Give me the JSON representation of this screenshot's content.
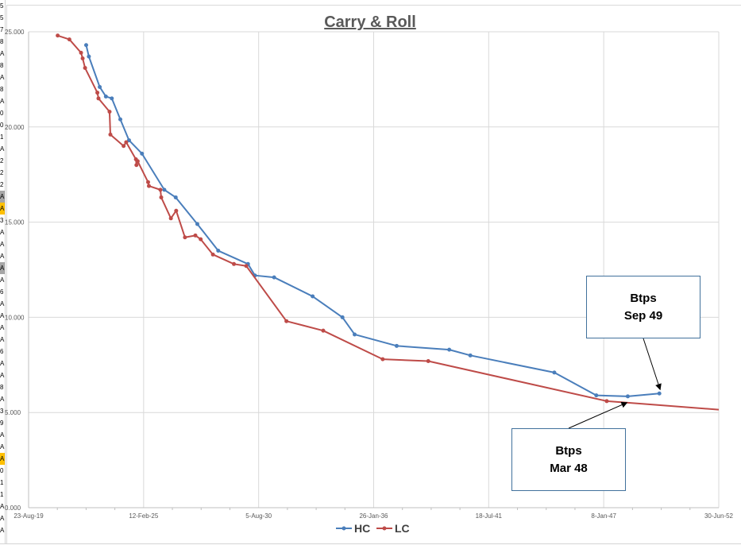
{
  "row_header_letters": [
    "5",
    "5",
    "7",
    "8",
    "A",
    "8",
    "A",
    "8",
    "A",
    "0",
    "0",
    "1",
    "A",
    "2",
    "2",
    "2",
    "A",
    "A",
    "3",
    "A",
    "A",
    "A",
    "A",
    "A",
    "6",
    "A",
    "A",
    "A",
    "A",
    "6",
    "A",
    "A",
    "8",
    "A",
    "3",
    "9",
    "A",
    "A",
    "A",
    "0",
    "1",
    "1",
    "A",
    "A",
    "A"
  ],
  "highlight_color": "#ffc000",
  "chart_data": {
    "type": "line",
    "title": "Carry & Roll",
    "xlabel": "",
    "ylabel": "",
    "x_tick_labels": [
      "23-Aug-19",
      "12-Feb-25",
      "5-Aug-30",
      "26-Jan-36",
      "18-Jul-41",
      "8-Jan-47",
      "30-Jun-52"
    ],
    "x_tick_dates": [
      "2019-08-23",
      "2025-02-12",
      "2030-08-05",
      "2036-01-26",
      "2041-07-18",
      "2047-01-08",
      "2052-06-30"
    ],
    "y_tick_labels": [
      "0.000",
      "5.000",
      "10.000",
      "15.000",
      "20.000",
      "25.000"
    ],
    "ylim": [
      0,
      25
    ],
    "xlim": [
      "2019-08-23",
      "2052-06-30"
    ],
    "grid": true,
    "legend_position": "bottom",
    "series": [
      {
        "name": "HC",
        "color": "#4a7ebb",
        "points": [
          [
            "2022-05-20",
            24.3
          ],
          [
            "2022-07-06",
            23.7
          ],
          [
            "2023-01-11",
            22.1
          ],
          [
            "2023-04-28",
            21.6
          ],
          [
            "2023-08-09",
            21.5
          ],
          [
            "2024-01-04",
            20.4
          ],
          [
            "2024-06-03",
            19.3
          ],
          [
            "2025-01-14",
            18.6
          ],
          [
            "2026-02-07",
            16.7
          ],
          [
            "2026-08-24",
            16.3
          ],
          [
            "2027-09-04",
            14.9
          ],
          [
            "2028-09-01",
            13.5
          ],
          [
            "2030-02-01",
            12.8
          ],
          [
            "2030-06-01",
            12.2
          ],
          [
            "2031-05-01",
            12.1
          ],
          [
            "2033-03-01",
            11.1
          ],
          [
            "2034-08-01",
            10.0
          ],
          [
            "2035-03-01",
            9.1
          ],
          [
            "2037-03-01",
            8.5
          ],
          [
            "2039-09-01",
            8.3
          ],
          [
            "2040-09-01",
            8.0
          ],
          [
            "2044-09-01",
            7.1
          ],
          [
            "2046-09-01",
            5.9
          ],
          [
            "2048-03-01",
            5.85
          ],
          [
            "2049-09-01",
            6.0
          ]
        ]
      },
      {
        "name": "LC",
        "color": "#be4b48",
        "points": [
          [
            "2021-01-10",
            24.8
          ],
          [
            "2021-08-01",
            24.6
          ],
          [
            "2022-02-20",
            23.9
          ],
          [
            "2022-03-20",
            23.6
          ],
          [
            "2022-05-01",
            23.1
          ],
          [
            "2022-12-01",
            21.8
          ],
          [
            "2022-12-20",
            21.5
          ],
          [
            "2023-07-01",
            20.8
          ],
          [
            "2023-07-15",
            19.6
          ],
          [
            "2024-03-01",
            19.0
          ],
          [
            "2024-04-15",
            19.2
          ],
          [
            "2024-10-01",
            18.3
          ],
          [
            "2024-10-10",
            18.0
          ],
          [
            "2024-11-01",
            18.2
          ],
          [
            "2025-05-01",
            17.1
          ],
          [
            "2025-05-15",
            16.9
          ],
          [
            "2025-12-01",
            16.7
          ],
          [
            "2025-12-15",
            16.3
          ],
          [
            "2026-06-01",
            15.2
          ],
          [
            "2026-09-01",
            15.6
          ],
          [
            "2027-02-01",
            14.2
          ],
          [
            "2027-08-01",
            14.3
          ],
          [
            "2027-11-01",
            14.1
          ],
          [
            "2028-06-01",
            13.3
          ],
          [
            "2029-06-01",
            12.8
          ],
          [
            "2030-01-01",
            12.7
          ],
          [
            "2031-12-01",
            9.8
          ],
          [
            "2033-09-01",
            9.3
          ],
          [
            "2036-07-01",
            7.8
          ],
          [
            "2038-09-01",
            7.7
          ],
          [
            "2047-03-01",
            5.6
          ],
          [
            "2052-06-30",
            5.15
          ]
        ]
      }
    ],
    "annotations": [
      {
        "line1": "Btps",
        "line2": "Sep 49",
        "points_to": "HC",
        "x": "2049-09-01",
        "y": 6.0
      },
      {
        "line1": "Btps",
        "line2": "Mar 48",
        "points_to": "LC",
        "x": "2048-03-01",
        "y": 5.5
      }
    ]
  }
}
